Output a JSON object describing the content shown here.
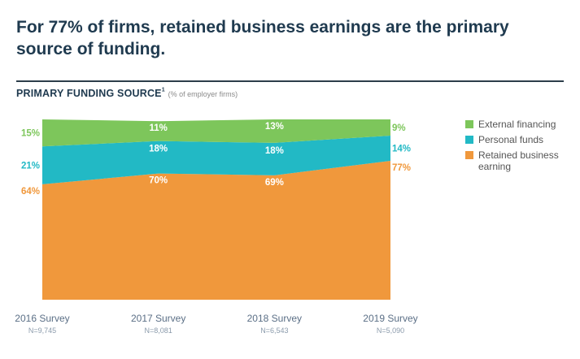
{
  "headline": "For 77% of firms, retained business earnings are the primary source of funding.",
  "subtitle": {
    "main": "PRIMARY FUNDING SOURCE",
    "superscript": "1",
    "note": "(% of employer firms)"
  },
  "colors": {
    "external": "#7dc65b",
    "personal": "#22b9c5",
    "retained": "#f0983c",
    "axis_text": "#5b6f86"
  },
  "chart_data": {
    "type": "area",
    "stacked": true,
    "categories": [
      "2016 Survey",
      "2017 Survey",
      "2018 Survey",
      "2019 Survey"
    ],
    "sublabels": [
      "N=9,745",
      "N=8,081",
      "N=6,543",
      "N=5,090"
    ],
    "ylim": [
      0,
      100
    ],
    "series": [
      {
        "name": "Retained business earning",
        "key": "retained",
        "values": [
          64,
          70,
          69,
          77
        ],
        "labels": [
          "64%",
          "70%",
          "69%",
          "77%"
        ]
      },
      {
        "name": "Personal funds",
        "key": "personal",
        "values": [
          21,
          18,
          18,
          14
        ],
        "labels": [
          "21%",
          "18%",
          "18%",
          "14%"
        ]
      },
      {
        "name": "External financing",
        "key": "external",
        "values": [
          15,
          11,
          13,
          9
        ],
        "labels": [
          "15%",
          "11%",
          "13%",
          "9%"
        ]
      }
    ],
    "legend_order": [
      "external",
      "personal",
      "retained"
    ],
    "legend_position": "right"
  }
}
